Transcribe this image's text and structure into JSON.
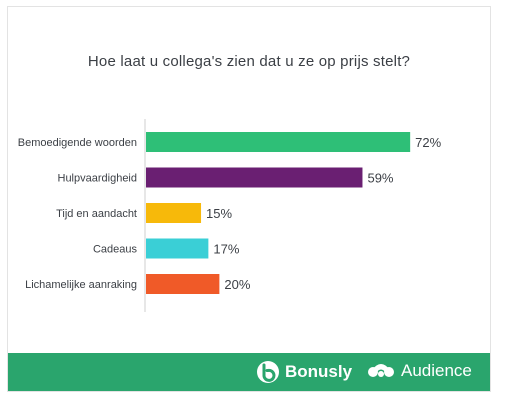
{
  "title": "Hoe laat u collega's zien dat u ze op prijs stelt?",
  "chart_data": {
    "type": "bar",
    "orientation": "horizontal",
    "categories": [
      "Bemoedigende woorden",
      "Hulpvaardigheid",
      "Tijd en aandacht",
      "Cadeaus",
      "Lichamelijke aanraking"
    ],
    "values": [
      72,
      59,
      15,
      17,
      20
    ],
    "value_labels": [
      "72%",
      "59%",
      "15%",
      "17%",
      "20%"
    ],
    "colors": [
      "#2ebf77",
      "#6a1f72",
      "#f7b90a",
      "#3acfd6",
      "#f05a28"
    ],
    "unit": "%"
  },
  "footer": {
    "background": "#2aa56d",
    "logos": [
      {
        "name": "Bonusly",
        "icon": "bonusly-logo-icon"
      },
      {
        "name": "Audience",
        "icon": "surveymonkey-logo-icon"
      }
    ]
  }
}
